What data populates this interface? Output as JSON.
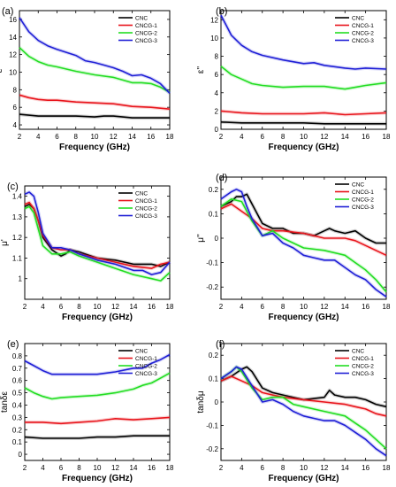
{
  "chart_data": [
    {
      "type": "line",
      "panel_label": "(a)",
      "xlabel": "Frequency (GHz)",
      "ylabel": "ε'",
      "xlim": [
        2,
        18
      ],
      "ylim": [
        3.5,
        17
      ],
      "xticks": [
        2,
        4,
        6,
        8,
        10,
        12,
        14,
        16,
        18
      ],
      "yticks": [
        4,
        6,
        8,
        10,
        12,
        14,
        16
      ],
      "legend": "top-right",
      "series": [
        {
          "name": "CNC",
          "color": "#000000",
          "x": [
            2,
            3,
            4,
            6,
            8,
            10,
            11,
            12,
            14,
            16,
            18
          ],
          "y": [
            5.2,
            5.1,
            5.0,
            5.0,
            5.0,
            4.9,
            5.0,
            5.0,
            4.8,
            4.8,
            4.8
          ]
        },
        {
          "name": "CNCG-1",
          "color": "#e8141b",
          "x": [
            2,
            3,
            4,
            5,
            6,
            8,
            10,
            12,
            14,
            16,
            18
          ],
          "y": [
            7.4,
            7.1,
            6.9,
            6.8,
            6.8,
            6.6,
            6.5,
            6.4,
            6.1,
            6.0,
            5.8
          ]
        },
        {
          "name": "CNCG-2",
          "color": "#22dd22",
          "x": [
            2,
            3,
            4,
            5,
            6,
            8,
            10,
            12,
            13,
            14,
            15,
            16,
            17,
            18
          ],
          "y": [
            12.8,
            11.8,
            11.2,
            10.8,
            10.6,
            10.1,
            9.7,
            9.4,
            9.1,
            8.8,
            8.8,
            8.7,
            8.3,
            7.7
          ]
        },
        {
          "name": "CNCG-3",
          "color": "#1f1fd6",
          "x": [
            2,
            3,
            4,
            5,
            6,
            8,
            9,
            10,
            11,
            12,
            13,
            14,
            15,
            16,
            17,
            18
          ],
          "y": [
            16.2,
            14.6,
            13.6,
            13.0,
            12.6,
            11.9,
            11.3,
            11.1,
            10.8,
            10.5,
            10.1,
            9.6,
            9.7,
            9.3,
            8.7,
            7.6
          ]
        }
      ]
    },
    {
      "type": "line",
      "panel_label": "(b)",
      "xlabel": "Frequency (GHz)",
      "ylabel": "ε''",
      "xlim": [
        2,
        18
      ],
      "ylim": [
        0,
        13
      ],
      "xticks": [
        2,
        4,
        6,
        8,
        10,
        12,
        14,
        16,
        18
      ],
      "yticks": [
        0,
        2,
        4,
        6,
        8,
        10,
        12
      ],
      "legend": "top-right",
      "series": [
        {
          "name": "CNC",
          "color": "#000000",
          "x": [
            2,
            4,
            6,
            8,
            10,
            12,
            14,
            16,
            18
          ],
          "y": [
            0.8,
            0.7,
            0.7,
            0.7,
            0.7,
            0.6,
            0.6,
            0.6,
            0.6
          ]
        },
        {
          "name": "CNCG-1",
          "color": "#e8141b",
          "x": [
            2,
            4,
            6,
            8,
            10,
            12,
            14,
            16,
            18
          ],
          "y": [
            2.0,
            1.8,
            1.7,
            1.7,
            1.7,
            1.8,
            1.6,
            1.7,
            1.8
          ]
        },
        {
          "name": "CNCG-2",
          "color": "#22dd22",
          "x": [
            2,
            3,
            4,
            5,
            6,
            8,
            10,
            12,
            14,
            15,
            16,
            18
          ],
          "y": [
            6.9,
            6.0,
            5.5,
            5.0,
            4.8,
            4.6,
            4.7,
            4.7,
            4.4,
            4.6,
            4.8,
            5.1
          ]
        },
        {
          "name": "CNCG-3",
          "color": "#1f1fd6",
          "x": [
            2,
            3,
            4,
            5,
            6,
            8,
            10,
            11,
            12,
            14,
            15,
            16,
            18
          ],
          "y": [
            12.5,
            10.3,
            9.2,
            8.5,
            8.1,
            7.6,
            7.2,
            7.3,
            7.0,
            6.7,
            6.6,
            6.7,
            6.6
          ]
        }
      ]
    },
    {
      "type": "line",
      "panel_label": "(c)",
      "xlabel": "Frequency (GHz)",
      "ylabel": "μ'",
      "xlim": [
        2,
        18
      ],
      "ylim": [
        0.9,
        1.45
      ],
      "xticks": [
        2,
        4,
        6,
        8,
        10,
        12,
        14,
        16,
        18
      ],
      "yticks": [
        1.0,
        1.1,
        1.2,
        1.3,
        1.4
      ],
      "legend": "top-right",
      "series": [
        {
          "name": "CNC",
          "color": "#000000",
          "x": [
            2,
            2.5,
            3,
            3.5,
            4,
            5,
            6,
            6.5,
            7,
            8,
            10,
            12,
            14,
            16,
            17,
            18
          ],
          "y": [
            1.35,
            1.36,
            1.34,
            1.28,
            1.2,
            1.14,
            1.11,
            1.12,
            1.14,
            1.13,
            1.1,
            1.09,
            1.07,
            1.07,
            1.06,
            1.08
          ]
        },
        {
          "name": "CNCG-1",
          "color": "#e8141b",
          "x": [
            2,
            2.5,
            3,
            3.5,
            4,
            5,
            6,
            7,
            8,
            10,
            12,
            14,
            16,
            17,
            18
          ],
          "y": [
            1.36,
            1.37,
            1.34,
            1.28,
            1.21,
            1.15,
            1.14,
            1.14,
            1.12,
            1.1,
            1.08,
            1.06,
            1.05,
            1.07,
            1.08
          ]
        },
        {
          "name": "CNCG-2",
          "color": "#22dd22",
          "x": [
            2,
            2.5,
            3,
            3.5,
            4,
            5,
            6,
            7,
            8,
            10,
            12,
            14,
            16,
            17,
            18
          ],
          "y": [
            1.34,
            1.35,
            1.32,
            1.24,
            1.16,
            1.12,
            1.12,
            1.13,
            1.11,
            1.08,
            1.05,
            1.02,
            1.0,
            0.99,
            1.03
          ]
        },
        {
          "name": "CNCG-3",
          "color": "#1f1fd6",
          "x": [
            2,
            2.5,
            3,
            3.5,
            4,
            5,
            6,
            7,
            8,
            10,
            12,
            14,
            15,
            16,
            17,
            18
          ],
          "y": [
            1.41,
            1.42,
            1.4,
            1.32,
            1.22,
            1.15,
            1.15,
            1.14,
            1.12,
            1.09,
            1.07,
            1.04,
            1.04,
            1.02,
            1.03,
            1.08
          ]
        }
      ]
    },
    {
      "type": "line",
      "panel_label": "(d)",
      "xlabel": "Frequency (GHz)",
      "ylabel": "μ''",
      "xlim": [
        2,
        18
      ],
      "ylim": [
        -0.25,
        0.25
      ],
      "xticks": [
        2,
        4,
        6,
        8,
        10,
        12,
        14,
        16,
        18
      ],
      "yticks": [
        -0.2,
        -0.1,
        0.0,
        0.1,
        0.2
      ],
      "legend": "top-right",
      "series": [
        {
          "name": "CNC",
          "color": "#000000",
          "x": [
            2,
            3,
            3.5,
            4,
            4.5,
            5,
            6,
            7,
            8,
            9,
            10,
            11,
            12,
            12.5,
            13,
            14,
            15,
            16,
            17,
            18
          ],
          "y": [
            0.13,
            0.15,
            0.17,
            0.17,
            0.18,
            0.14,
            0.06,
            0.04,
            0.04,
            0.02,
            0.02,
            0.01,
            0.03,
            0.04,
            0.03,
            0.02,
            0.03,
            0.0,
            -0.02,
            -0.02
          ]
        },
        {
          "name": "CNCG-1",
          "color": "#e8141b",
          "x": [
            2,
            3,
            4,
            5,
            6,
            7,
            8,
            10,
            12,
            14,
            15,
            16,
            17,
            18
          ],
          "y": [
            0.12,
            0.14,
            0.11,
            0.08,
            0.04,
            0.03,
            0.03,
            0.02,
            0.0,
            0.0,
            -0.01,
            -0.03,
            -0.05,
            -0.07
          ]
        },
        {
          "name": "CNCG-2",
          "color": "#22dd22",
          "x": [
            2,
            3,
            4,
            5,
            6,
            7,
            8,
            9,
            10,
            12,
            14,
            15,
            16,
            17,
            18
          ],
          "y": [
            0.13,
            0.16,
            0.15,
            0.07,
            0.01,
            0.03,
            0.0,
            -0.02,
            -0.04,
            -0.05,
            -0.07,
            -0.1,
            -0.13,
            -0.17,
            -0.22
          ]
        },
        {
          "name": "CNCG-3",
          "color": "#1f1fd6",
          "x": [
            2,
            3,
            3.5,
            4,
            4.5,
            5,
            6,
            7,
            8,
            9,
            10,
            11,
            12,
            13,
            14,
            15,
            16,
            17,
            18
          ],
          "y": [
            0.16,
            0.19,
            0.2,
            0.19,
            0.13,
            0.08,
            0.01,
            0.02,
            -0.02,
            -0.04,
            -0.07,
            -0.08,
            -0.09,
            -0.09,
            -0.12,
            -0.15,
            -0.17,
            -0.21,
            -0.24
          ]
        }
      ]
    },
    {
      "type": "line",
      "panel_label": "(e)",
      "xlabel": "Frequency (GHz)",
      "ylabel": "tanδε",
      "xlim": [
        2,
        18
      ],
      "ylim": [
        -0.05,
        0.9
      ],
      "xticks": [
        2,
        4,
        6,
        8,
        10,
        12,
        14,
        16,
        18
      ],
      "yticks": [
        0.0,
        0.1,
        0.2,
        0.3,
        0.4,
        0.5,
        0.6,
        0.7,
        0.8
      ],
      "legend": "top-right",
      "series": [
        {
          "name": "CNC",
          "color": "#000000",
          "x": [
            2,
            4,
            6,
            8,
            10,
            12,
            14,
            16,
            18
          ],
          "y": [
            0.14,
            0.13,
            0.13,
            0.13,
            0.14,
            0.14,
            0.15,
            0.15,
            0.15
          ]
        },
        {
          "name": "CNCG-1",
          "color": "#e8141b",
          "x": [
            2,
            4,
            6,
            8,
            10,
            12,
            14,
            16,
            18
          ],
          "y": [
            0.26,
            0.26,
            0.25,
            0.26,
            0.27,
            0.29,
            0.28,
            0.29,
            0.3
          ]
        },
        {
          "name": "CNCG-2",
          "color": "#22dd22",
          "x": [
            2,
            3,
            4,
            5,
            6,
            8,
            10,
            12,
            14,
            15,
            16,
            17,
            18
          ],
          "y": [
            0.54,
            0.5,
            0.47,
            0.45,
            0.46,
            0.47,
            0.48,
            0.5,
            0.53,
            0.56,
            0.58,
            0.62,
            0.66
          ]
        },
        {
          "name": "CNCG-3",
          "color": "#1f1fd6",
          "x": [
            2,
            3,
            4,
            5,
            6,
            8,
            10,
            12,
            14,
            15,
            16,
            17,
            18
          ],
          "y": [
            0.76,
            0.72,
            0.68,
            0.65,
            0.65,
            0.65,
            0.65,
            0.67,
            0.7,
            0.7,
            0.74,
            0.77,
            0.81
          ]
        }
      ]
    },
    {
      "type": "line",
      "panel_label": "(f)",
      "xlabel": "Frequency (GHz)",
      "ylabel": "tanδμ",
      "xlim": [
        2,
        18
      ],
      "ylim": [
        -0.25,
        0.25
      ],
      "xticks": [
        2,
        4,
        6,
        8,
        10,
        12,
        14,
        16,
        18
      ],
      "yticks": [
        -0.2,
        -0.1,
        0.0,
        0.1,
        0.2
      ],
      "legend": "top-right",
      "series": [
        {
          "name": "CNC",
          "color": "#000000",
          "x": [
            2,
            3,
            4,
            4.5,
            5,
            6,
            7,
            8,
            10,
            12,
            12.5,
            13,
            14,
            15,
            16,
            17,
            18
          ],
          "y": [
            0.09,
            0.11,
            0.14,
            0.15,
            0.13,
            0.06,
            0.04,
            0.03,
            0.01,
            0.02,
            0.05,
            0.03,
            0.02,
            0.02,
            0.01,
            -0.01,
            -0.02
          ]
        },
        {
          "name": "CNCG-1",
          "color": "#e8141b",
          "x": [
            2,
            3,
            4,
            5,
            6,
            7,
            8,
            10,
            12,
            14,
            15,
            16,
            17,
            18
          ],
          "y": [
            0.09,
            0.11,
            0.09,
            0.07,
            0.04,
            0.03,
            0.02,
            0.01,
            0.0,
            -0.01,
            -0.02,
            -0.03,
            -0.05,
            -0.06
          ]
        },
        {
          "name": "CNCG-2",
          "color": "#22dd22",
          "x": [
            2,
            3,
            3.5,
            4,
            5,
            6,
            7,
            8,
            9,
            10,
            12,
            14,
            15,
            16,
            17,
            18
          ],
          "y": [
            0.1,
            0.13,
            0.15,
            0.13,
            0.06,
            0.01,
            0.02,
            0.02,
            -0.01,
            -0.02,
            -0.04,
            -0.06,
            -0.09,
            -0.12,
            -0.16,
            -0.2
          ]
        },
        {
          "name": "CNCG-3",
          "color": "#1f1fd6",
          "x": [
            2,
            3,
            3.5,
            4,
            5,
            6,
            7,
            8,
            9,
            10,
            11,
            12,
            13,
            14,
            15,
            16,
            17,
            18
          ],
          "y": [
            0.1,
            0.13,
            0.15,
            0.14,
            0.07,
            0.0,
            0.01,
            -0.01,
            -0.04,
            -0.06,
            -0.07,
            -0.08,
            -0.08,
            -0.1,
            -0.13,
            -0.16,
            -0.2,
            -0.23
          ]
        }
      ]
    }
  ]
}
